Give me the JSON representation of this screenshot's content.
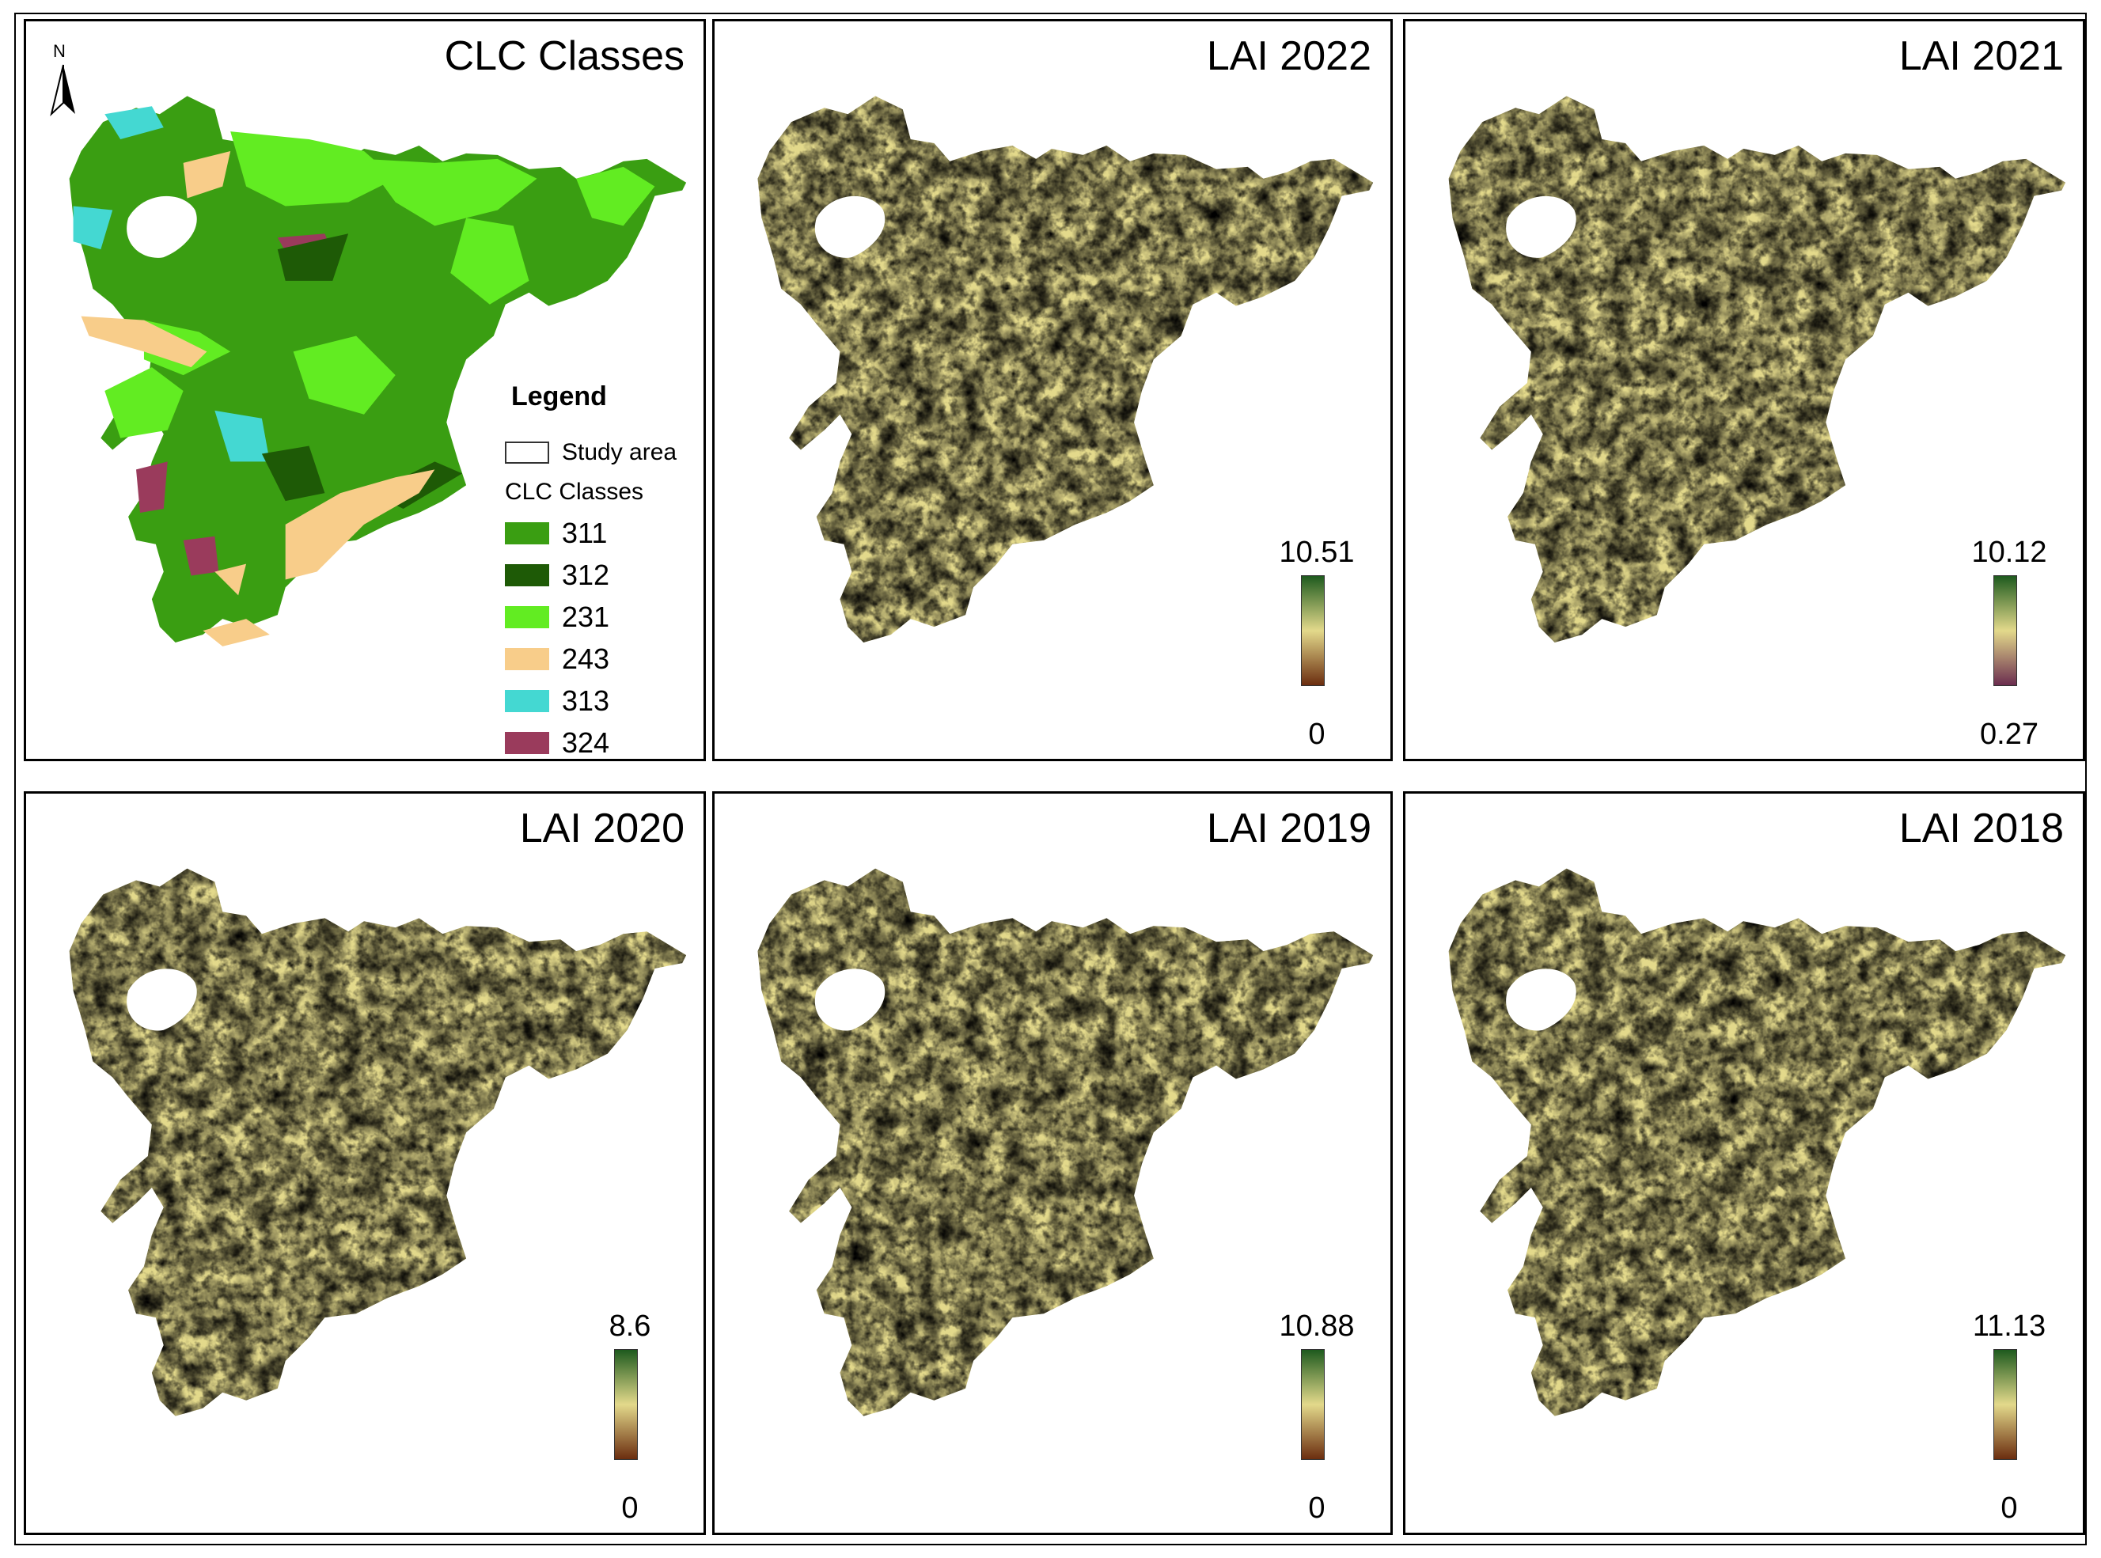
{
  "clc_panel": {
    "title": "CLC Classes",
    "north_label": "N",
    "legend": {
      "title": "Legend",
      "study_area_label": "Study area",
      "classes_heading": "CLC Classes",
      "classes": [
        {
          "code": "311",
          "color": "#3a9e12"
        },
        {
          "code": "312",
          "color": "#1e5a06"
        },
        {
          "code": "231",
          "color": "#62ec22"
        },
        {
          "code": "243",
          "color": "#f8cd8a"
        },
        {
          "code": "313",
          "color": "#44d8d2"
        },
        {
          "code": "324",
          "color": "#9a3b5c"
        }
      ]
    }
  },
  "lai_panels": [
    {
      "title": "LAI 2022",
      "max": "10.51",
      "min": "0",
      "palette": [
        "#1e5a1e",
        "#e3d98b",
        "#6b2d0f"
      ]
    },
    {
      "title": "LAI 2021",
      "max": "10.12",
      "min": "0.27",
      "palette": [
        "#1e5a1e",
        "#e3d98b",
        "#6b2d4f"
      ]
    },
    {
      "title": "LAI 2020",
      "max": "8.6",
      "min": "0",
      "palette": [
        "#1e5a1e",
        "#e3d98b",
        "#6b2d0f"
      ]
    },
    {
      "title": "LAI 2019",
      "max": "10.88",
      "min": "0",
      "palette": [
        "#1e5a1e",
        "#e3d98b",
        "#6b2d0f"
      ]
    },
    {
      "title": "LAI 2018",
      "max": "11.13",
      "min": "0",
      "palette": [
        "#1e5a1e",
        "#e3d98b",
        "#6b2d0f"
      ]
    }
  ]
}
